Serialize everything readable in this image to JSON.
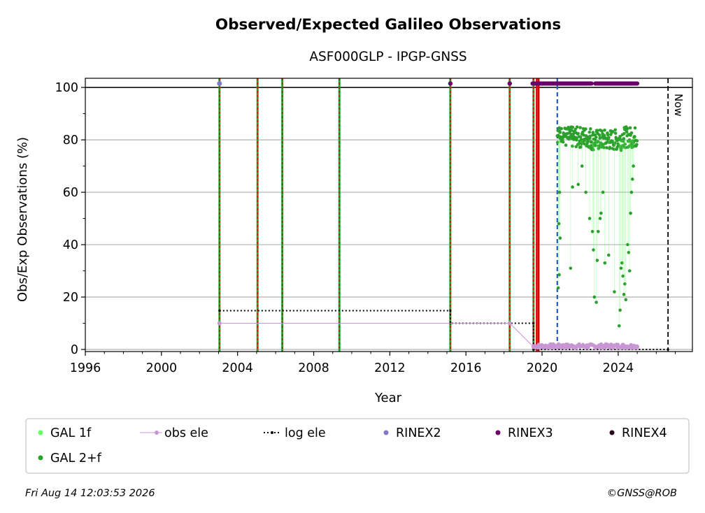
{
  "chart_data": {
    "type": "scatter",
    "title": "Observed/Expected Galileo Observations",
    "subtitle": "ASF000GLP - IPGP-GNSS",
    "xlabel": "Year",
    "ylabel": "Obs/Exp Observations (%)",
    "xlim": [
      1996,
      2027.9
    ],
    "ylim": [
      -0.8,
      103.5
    ],
    "x_ticks": [
      1996,
      2000,
      2004,
      2008,
      2012,
      2016,
      2020,
      2024
    ],
    "x_tick_labels": [
      "1996",
      "2000",
      "2004",
      "2008",
      "2012",
      "2016",
      "2020",
      "2024"
    ],
    "y_ticks": [
      0,
      20,
      40,
      60,
      80,
      100
    ],
    "y_tick_labels": [
      "0",
      "20",
      "40",
      "60",
      "80",
      "100"
    ],
    "grid": "horizontal",
    "reference_line_y": 100,
    "now_label": "Now",
    "now_x": 2026.62,
    "colors": {
      "gal_1f": "#66ff66",
      "gal_2f": "#2ca02c",
      "obs_ele": "#c896d2",
      "log_ele": "#000000",
      "rinex2": "#8878c3",
      "rinex3": "#6a006a",
      "rinex4": "#2a0a1e",
      "event_green": "#2ca02c",
      "event_red": "#e00000",
      "event_blue": "#1f5fb4",
      "grid": "#b0b0b0"
    },
    "event_lines": [
      {
        "x": 2003.05,
        "style": "green-red-dashed"
      },
      {
        "x": 2005.05,
        "style": "green-red-dashed"
      },
      {
        "x": 2006.35,
        "style": "green-red-dashed"
      },
      {
        "x": 2009.35,
        "style": "green-red-dashed"
      },
      {
        "x": 2015.18,
        "style": "green-red-dashed"
      },
      {
        "x": 2018.3,
        "style": "green-red-dashed"
      },
      {
        "x": 2019.55,
        "style": "green-red-dashed"
      },
      {
        "x": 2019.72,
        "style": "solid-red"
      },
      {
        "x": 2019.82,
        "style": "solid-red"
      },
      {
        "x": 2020.8,
        "style": "blue-dashed"
      }
    ],
    "log_ele": {
      "x": [
        2003.05,
        2015.18,
        2015.18,
        2019.55,
        2019.55,
        2026.62
      ],
      "y": [
        14.8,
        14.8,
        10.0,
        10.0,
        0.0,
        0.0
      ]
    },
    "obs_ele": {
      "x": [
        2003.05,
        2018.3,
        2019.55,
        2020.0,
        2021.0,
        2022.0,
        2023.0,
        2024.0,
        2025.0
      ],
      "y": [
        10.0,
        10.0,
        1.0,
        1.0,
        1.5,
        1.2,
        1.0,
        1.1,
        1.0
      ]
    },
    "rinex2": {
      "x": [
        2003.05
      ],
      "y": [
        101.5
      ]
    },
    "rinex3": {
      "x": [
        2015.18,
        2018.3
      ],
      "y": [
        101.5,
        101.5
      ],
      "continuous_range": [
        [
          2019.5,
          2022.6
        ],
        [
          2022.8,
          2025.0
        ]
      ]
    },
    "gal_2f_bands": [
      {
        "start": 2020.8,
        "end": 2021.25,
        "base": 82,
        "spread": 3
      },
      {
        "start": 2021.25,
        "end": 2022.55,
        "base": 81,
        "spread": 4
      },
      {
        "start": 2022.55,
        "end": 2024.2,
        "base": 80,
        "spread": 4
      },
      {
        "start": 2024.2,
        "end": 2025.0,
        "base": 81,
        "spread": 4
      }
    ],
    "gal_2f_low_points": {
      "x": [
        2020.85,
        2020.9,
        2020.95,
        2020.88,
        2020.92,
        2021.5,
        2021.6,
        2021.9,
        2022.1,
        2022.3,
        2022.5,
        2022.65,
        2022.7,
        2022.75,
        2022.85,
        2022.9,
        2022.95,
        2023.05,
        2023.1,
        2023.2,
        2023.3,
        2023.5,
        2023.8,
        2024.05,
        2024.1,
        2024.15,
        2024.2,
        2024.25,
        2024.3,
        2024.35,
        2024.4,
        2024.5,
        2024.55,
        2024.6,
        2024.65,
        2024.7,
        2024.75,
        2024.8
      ],
      "y": [
        23.5,
        28.5,
        42.5,
        48,
        60,
        31,
        62,
        63,
        70,
        60,
        50,
        45,
        38,
        20,
        18,
        34,
        45,
        50,
        52,
        60,
        33,
        36,
        22,
        9,
        15,
        31,
        33,
        28,
        21,
        25,
        19,
        40,
        37,
        30,
        52,
        60,
        65,
        70
      ]
    },
    "legend": [
      {
        "label": "GAL 1f",
        "marker": "dot",
        "color": "#66ff66"
      },
      {
        "label": "obs ele",
        "marker": "line-dot",
        "color": "#c896d2"
      },
      {
        "label": "log ele",
        "marker": "dotted-line-dot",
        "color": "#000000"
      },
      {
        "label": "RINEX2",
        "marker": "dot",
        "color": "#8878c3"
      },
      {
        "label": "RINEX3",
        "marker": "dot",
        "color": "#6a006a"
      },
      {
        "label": "RINEX4",
        "marker": "dot",
        "color": "#2a0a1e"
      },
      {
        "label": "GAL 2+f",
        "marker": "dot",
        "color": "#2ca02c"
      }
    ],
    "legend_position": "bottom"
  },
  "footer": {
    "timestamp": "Fri Aug 14 12:03:53 2026",
    "copyright": "©GNSS@ROB"
  }
}
